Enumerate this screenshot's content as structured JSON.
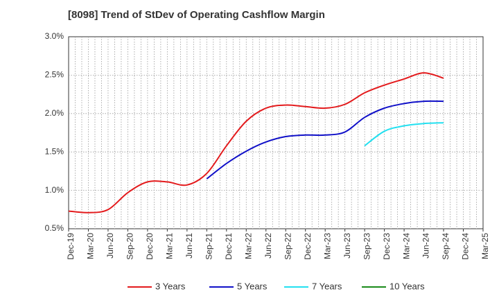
{
  "colors": {
    "3y": "#e31a1c",
    "5y": "#1010c8",
    "7y": "#22e0f0",
    "10y": "#1a8a1a"
  },
  "chart_data": {
    "type": "line",
    "title": "[8098]  Trend of StDev of Operating Cashflow Margin",
    "xlabel": "",
    "ylabel": "",
    "ylim": [
      0.5,
      3.0
    ],
    "y_ticks": [
      "0.5%",
      "1.0%",
      "1.5%",
      "2.0%",
      "2.5%",
      "3.0%"
    ],
    "categories": [
      "Dec-19",
      "Mar-20",
      "Jun-20",
      "Sep-20",
      "Dec-20",
      "Mar-21",
      "Jun-21",
      "Sep-21",
      "Dec-21",
      "Mar-22",
      "Jun-22",
      "Sep-22",
      "Dec-22",
      "Mar-23",
      "Jun-23",
      "Sep-23",
      "Dec-23",
      "Mar-24",
      "Jun-24",
      "Sep-24",
      "Dec-24",
      "Mar-25"
    ],
    "grid": true,
    "legend_position": "bottom",
    "series": [
      {
        "name": "3 Years",
        "color_key": "3y",
        "values": [
          0.73,
          0.71,
          0.75,
          0.97,
          1.11,
          1.11,
          1.07,
          1.22,
          1.58,
          1.9,
          2.07,
          2.11,
          2.09,
          2.07,
          2.12,
          2.27,
          2.37,
          2.45,
          2.53,
          2.46,
          null,
          null
        ]
      },
      {
        "name": "5 Years",
        "color_key": "5y",
        "values": [
          null,
          null,
          null,
          null,
          null,
          null,
          null,
          1.15,
          1.35,
          1.51,
          1.63,
          1.7,
          1.72,
          1.72,
          1.76,
          1.95,
          2.07,
          2.13,
          2.16,
          2.16,
          null,
          null
        ]
      },
      {
        "name": "7 Years",
        "color_key": "7y",
        "values": [
          null,
          null,
          null,
          null,
          null,
          null,
          null,
          null,
          null,
          null,
          null,
          null,
          null,
          null,
          null,
          1.58,
          1.77,
          1.84,
          1.87,
          1.88,
          null,
          null
        ]
      },
      {
        "name": "10 Years",
        "color_key": "10y",
        "values": [
          null,
          null,
          null,
          null,
          null,
          null,
          null,
          null,
          null,
          null,
          null,
          null,
          null,
          null,
          null,
          null,
          null,
          null,
          null,
          null,
          null,
          null
        ]
      }
    ]
  }
}
